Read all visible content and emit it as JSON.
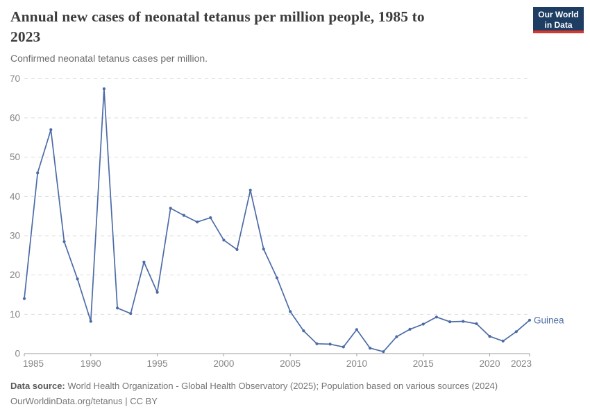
{
  "header": {
    "title": "Annual new cases of neonatal tetanus per million people, 1985 to 2023",
    "title_lines": [
      "Annual new cases of neonatal tetanus per million people, 1985 to",
      "2023"
    ],
    "subtitle": "Confirmed neonatal tetanus cases per million.",
    "logo_lines": [
      "Our World",
      "in Data"
    ]
  },
  "footer": {
    "data_source_label": "Data source:",
    "data_source_text": " World Health Organization - Global Health Observatory (2025); Population based on various sources (2024)",
    "attribution": "OurWorldinData.org/tetanus | CC BY"
  },
  "colors": {
    "line": "#4C6BA6",
    "grid": "#dddddd",
    "axis": "#9e9e9e",
    "tick_text": "#858585",
    "logo_bg": "#1d3d63",
    "logo_red": "#d7382e",
    "title_text": "#3c3c3c"
  },
  "chart_data": {
    "type": "line",
    "title": "Annual new cases of neonatal tetanus per million people, 1985 to 2023",
    "subtitle": "Confirmed neonatal tetanus cases per million.",
    "xlabel": "",
    "ylabel": "",
    "xlim": [
      1985,
      2023
    ],
    "ylim": [
      0,
      70
    ],
    "x_ticks": [
      1985,
      1990,
      1995,
      2000,
      2005,
      2010,
      2015,
      2020,
      2023
    ],
    "y_ticks": [
      0,
      10,
      20,
      30,
      40,
      50,
      60,
      70
    ],
    "grid": "horizontal-dashed",
    "legend_position": "end-of-line-label",
    "series": [
      {
        "name": "Guinea",
        "color": "#4C6BA6",
        "x": [
          1985,
          1986,
          1987,
          1988,
          1989,
          1990,
          1991,
          1992,
          1993,
          1994,
          1995,
          1996,
          1997,
          1998,
          1999,
          2000,
          2001,
          2002,
          2003,
          2004,
          2005,
          2006,
          2007,
          2008,
          2009,
          2010,
          2011,
          2012,
          2013,
          2014,
          2015,
          2016,
          2017,
          2018,
          2019,
          2020,
          2021,
          2022,
          2023
        ],
        "values": [
          14,
          46,
          57,
          28.5,
          19,
          8.2,
          67.4,
          11.6,
          10.2,
          23.3,
          15.6,
          37,
          35.2,
          33.5,
          34.6,
          28.9,
          26.5,
          41.6,
          26.6,
          19.3,
          10.7,
          5.8,
          2.5,
          2.4,
          1.7,
          6.1,
          1.4,
          0.5,
          4.3,
          6.2,
          7.5,
          9.3,
          8.1,
          8.2,
          7.6,
          4.4,
          3.2,
          5.6,
          8.5
        ]
      }
    ]
  }
}
